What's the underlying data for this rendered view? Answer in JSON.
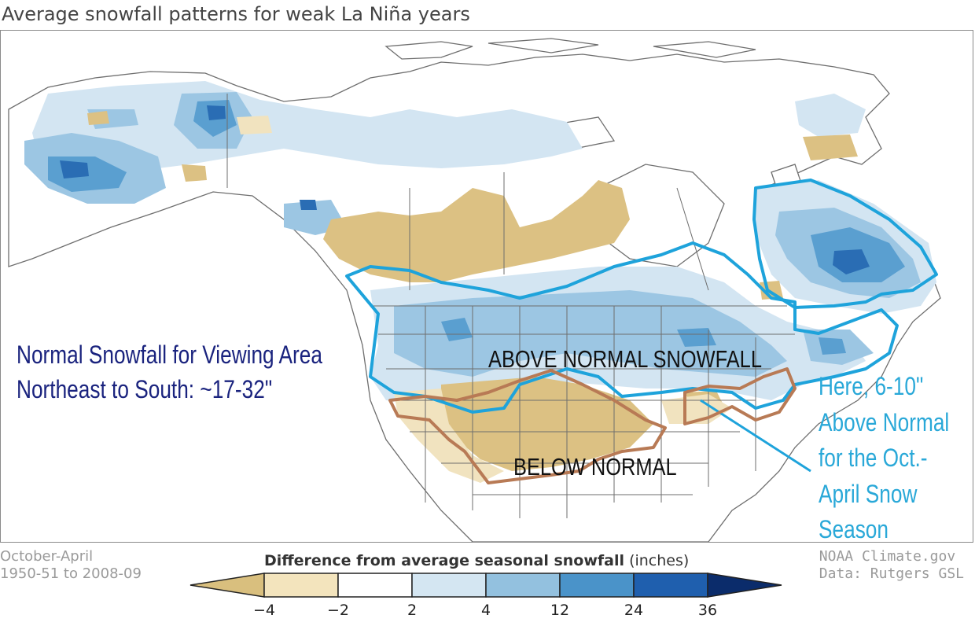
{
  "title": "Average snowfall patterns for weak La Niña years",
  "map": {
    "above_label": "ABOVE NORMAL SNOWFALL",
    "below_label": "BELOW NORMAL",
    "normal_note": [
      "Normal Snowfall for Viewing Area",
      "Northeast to South:  ~17-32\""
    ],
    "callout": [
      "Here, 6-10\"",
      "Above Normal",
      "for the Oct.-",
      "April Snow",
      "Season"
    ]
  },
  "footer": {
    "period": "October-April",
    "years": "1950-51 to 2008-09",
    "source": "NOAA Climate.gov",
    "data": "Data: Rutgers GSL"
  },
  "legend": {
    "title_bold": "Difference from average seasonal snowfall",
    "title_unit": "(inches)",
    "ticks": [
      "−4",
      "−2",
      "2",
      "4",
      "12",
      "24",
      "36"
    ],
    "colors": [
      "#d9bf7e",
      "#f3e4bd",
      "#ffffff",
      "#d4e6f2",
      "#93c1df",
      "#4a93c9",
      "#1f5fae",
      "#0b2c6b"
    ]
  },
  "colors": {
    "above_outline": "#1ea3db",
    "below_outline": "#b87a55",
    "tan": "#dcc183",
    "light_tan": "#f1e3bf",
    "light_blue": "#d3e5f2",
    "mid_blue": "#9cc6e3",
    "blue": "#5a9fd0",
    "dark_blue": "#2a6db4",
    "border": "#6e6e6e"
  }
}
